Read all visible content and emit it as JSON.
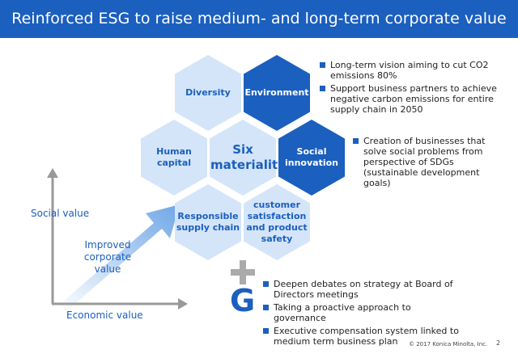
{
  "header": {
    "title": "Reinforced ESG to raise medium- and long-term corporate value"
  },
  "hexagons": [
    {
      "label": "Diversity",
      "style": "light"
    },
    {
      "label": "Environment",
      "style": "dark"
    },
    {
      "label": "Human capital",
      "style": "light"
    },
    {
      "label": "Six materiality",
      "style": "center"
    },
    {
      "label": "Social innovation",
      "style": "dark"
    },
    {
      "label": "Responsible supply chain",
      "style": "light"
    },
    {
      "label": "customer satisfaction and product safety",
      "style": "light"
    }
  ],
  "environment_notes": [
    "Long-term vision aiming to cut CO2 emissions 80%",
    "Support business partners to achieve negative carbon emissions for entire supply chain in 2050"
  ],
  "social_notes": [
    "Creation of businesses that solve social problems from perspective of SDGs (sustainable development goals)"
  ],
  "governance": {
    "letter": "G",
    "notes": [
      "Deepen debates on strategy at Board of Directors meetings",
      "Taking a proactive approach to governance",
      "Executive compensation system linked to medium term business plan"
    ]
  },
  "axes": {
    "y_label": "Social value",
    "x_label": "Economic value",
    "arrow_label": "Improved corporate value"
  },
  "footer": {
    "copyright": "© 2017 Konica Minolta, Inc.",
    "page": "2"
  }
}
